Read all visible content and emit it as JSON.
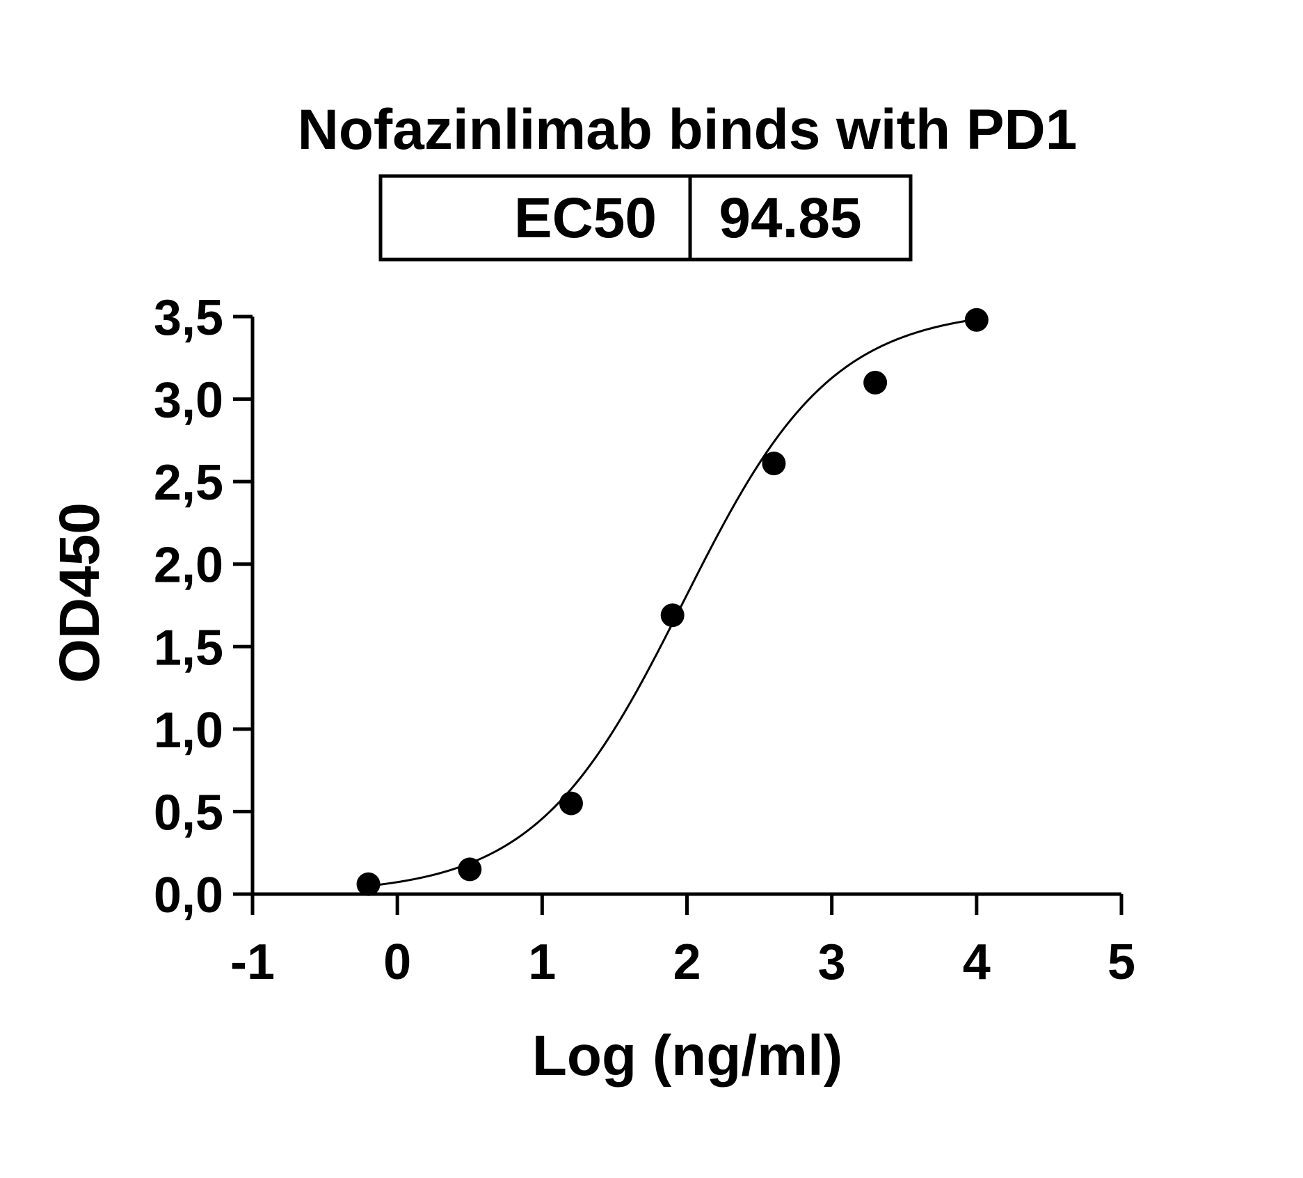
{
  "chart_data": {
    "type": "scatter",
    "title": "Nofazinlimab binds with PD1",
    "xlabel": "Log (ng/ml)",
    "ylabel": "OD450",
    "xlim": [
      -1,
      5
    ],
    "ylim": [
      0,
      3.5
    ],
    "x_ticks": [
      -1,
      0,
      1,
      2,
      3,
      4,
      5
    ],
    "x_tick_labels": [
      "-1",
      "0",
      "1",
      "2",
      "3",
      "4",
      "5"
    ],
    "y_ticks": [
      0,
      0.5,
      1,
      1.5,
      2,
      2.5,
      3,
      3.5
    ],
    "y_tick_labels": [
      "0,0",
      "0,5",
      "1,0",
      "1,5",
      "2,0",
      "2,5",
      "3,0",
      "3,5"
    ],
    "grid": false,
    "legend": "none",
    "ec50_table": {
      "label": "EC50",
      "value": "94.85"
    },
    "series": [
      {
        "points": [
          {
            "x": -0.2,
            "y": 0.06
          },
          {
            "x": 0.5,
            "y": 0.15
          },
          {
            "x": 1.2,
            "y": 0.55
          },
          {
            "x": 1.9,
            "y": 1.69
          },
          {
            "x": 2.6,
            "y": 2.61
          },
          {
            "x": 3.3,
            "y": 3.1
          },
          {
            "x": 4.0,
            "y": 3.48
          }
        ]
      }
    ],
    "fit_curve": {
      "model": "4PL",
      "bottom": 0.0,
      "top": 3.55,
      "log_ec50": 1.977,
      "hill_slope": 0.85,
      "x_range": [
        -0.2,
        4.0
      ]
    },
    "colors": {
      "points": "#000000",
      "curve": "#000000",
      "axes": "#000000"
    }
  }
}
